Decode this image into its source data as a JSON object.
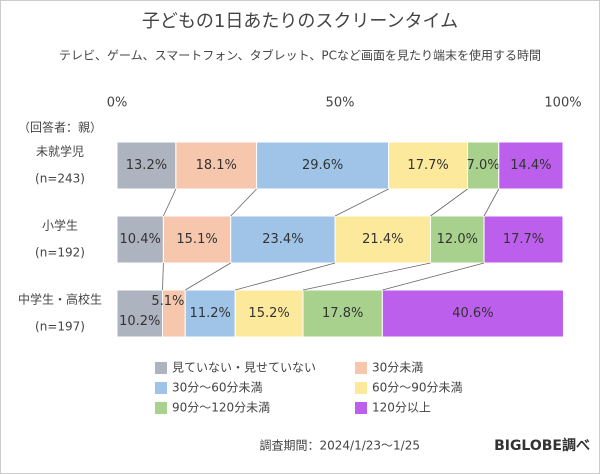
{
  "chart_data": {
    "type": "stacked-bar-horizontal",
    "title": "子どもの1日あたりのスクリーンタイム",
    "subtitle": "テレビ、ゲーム、スマートフォン、タブレット、PCなど画面を見たり端末を使用する時間",
    "respondent_note": "（回答者：親）",
    "categories": [
      "未就学児",
      "小学生",
      "中学生・高校生"
    ],
    "sample_sizes": [
      "(n=243)",
      "(n=192)",
      "(n=197)"
    ],
    "xlim": [
      0,
      100
    ],
    "xticks": [
      {
        "value": 0,
        "label": "0%"
      },
      {
        "value": 50,
        "label": "50%"
      },
      {
        "value": 100,
        "label": "100%"
      }
    ],
    "series": [
      {
        "name": "見ていない・見せていない",
        "color": "#aeb3c0",
        "values": [
          13.2,
          10.4,
          10.2
        ],
        "value_labels": [
          "13.2%",
          "10.4%",
          "10.2%"
        ]
      },
      {
        "name": "30分未満",
        "color": "#f6c7ad",
        "values": [
          18.1,
          15.1,
          5.1
        ],
        "value_labels": [
          "18.1%",
          "15.1%",
          "5.1%"
        ]
      },
      {
        "name": "30分～60分未満",
        "color": "#9fc4e8",
        "values": [
          29.6,
          23.4,
          11.2
        ],
        "value_labels": [
          "29.6%",
          "23.4%",
          "11.2%"
        ]
      },
      {
        "name": "60分～90分未満",
        "color": "#fde99c",
        "values": [
          17.7,
          21.4,
          15.2
        ],
        "value_labels": [
          "17.7%",
          "21.4%",
          "15.2%"
        ]
      },
      {
        "name": "90分～120分未満",
        "color": "#a9d18e",
        "values": [
          7,
          12,
          17.8
        ],
        "value_labels": [
          "7.0%",
          "12.0%",
          "17.8%"
        ]
      },
      {
        "name": "120分以上",
        "color": "#bc5fec",
        "values": [
          14.4,
          17.7,
          40.6
        ],
        "value_labels": [
          "14.4%",
          "17.7%",
          "40.6%"
        ]
      }
    ],
    "footer_period": "調査期間：2024/1/23～1/25",
    "footer_source": "BIGLOBE調べ"
  }
}
